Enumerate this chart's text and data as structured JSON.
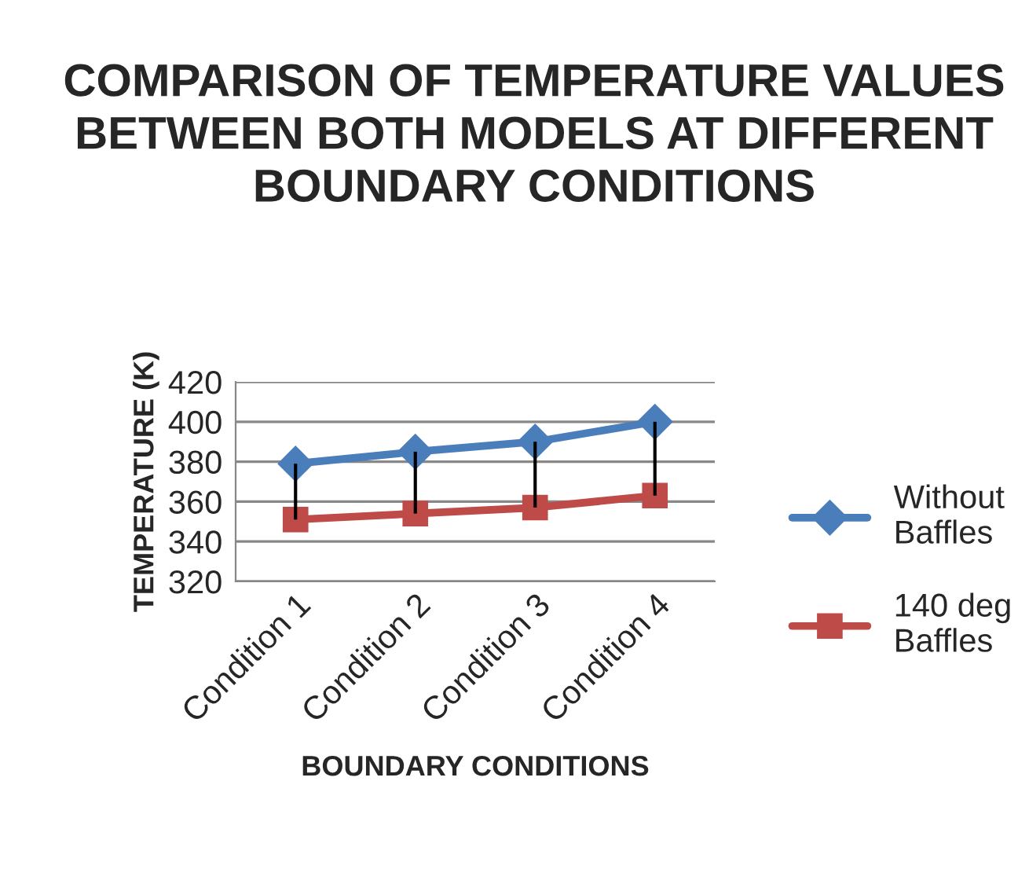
{
  "chart_data": {
    "type": "line",
    "title": "COMPARISON OF TEMPERATURE VALUES BETWEEN BOTH MODELS AT DIFFERENT BOUNDARY CONDITIONS",
    "xlabel": "BOUNDARY CONDITIONS",
    "ylabel": "TEMPERATURE (K)",
    "categories": [
      "Condition 1",
      "Condition 2",
      "Condition 3",
      "Condition 4"
    ],
    "series": [
      {
        "name": "Without Baffles",
        "color": "#4a7ebb",
        "marker": "diamond",
        "values": [
          379,
          385,
          390,
          400
        ],
        "errors": [
          [
            351,
            379
          ],
          [
            354,
            385
          ],
          [
            357,
            390
          ],
          [
            363,
            400
          ]
        ]
      },
      {
        "name": "140 deg Baffles",
        "color": "#be4b48",
        "marker": "square",
        "values": [
          351,
          354,
          357,
          363
        ]
      }
    ],
    "ylim": [
      320,
      420
    ],
    "yticks": [
      320,
      340,
      360,
      380,
      400,
      420
    ],
    "grid": "y",
    "legend": "right"
  }
}
